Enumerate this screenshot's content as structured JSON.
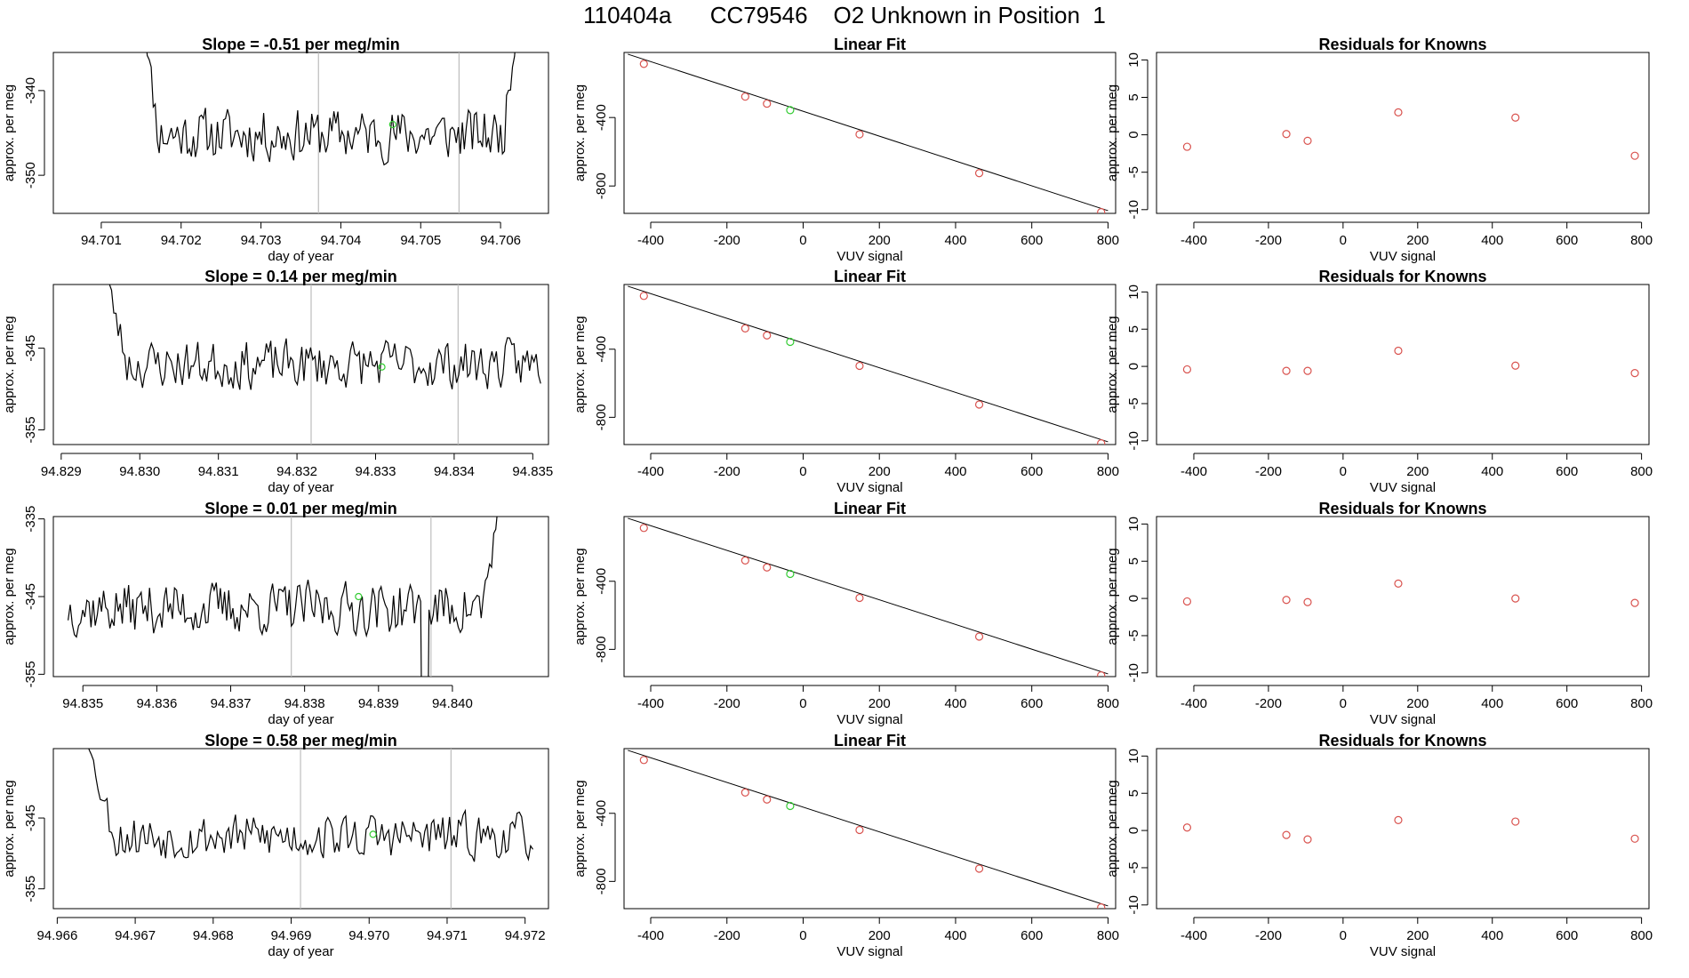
{
  "page_title": "110404a      CC79546    O2 Unknown in Position  1",
  "colors": {
    "series_line": "#000000",
    "marker_known": "#d9534f",
    "marker_unknown": "#33cc33",
    "bracket": "#bdbdbd"
  },
  "chart_data": [
    {
      "type": "line",
      "row": 0,
      "col": 0,
      "title": "Slope =  -0.51  per meg/min",
      "xlabel": "day of year",
      "ylabel": "approx. per meg",
      "xlim": [
        94.7004,
        94.7066
      ],
      "ylim": [
        -354.5,
        -335.5
      ],
      "xticks": [
        94.701,
        94.702,
        94.703,
        94.704,
        94.705,
        94.706
      ],
      "xtick_labels": [
        "94.701",
        "94.702",
        "94.703",
        "94.704",
        "94.705",
        "94.706"
      ],
      "yticks": [
        -350,
        -340
      ],
      "ytick_labels": [
        "-350",
        "-340"
      ],
      "vlines": [
        94.70372,
        94.70548
      ],
      "series": {
        "x_start": 94.7015,
        "x_end": 94.70625,
        "n": 190,
        "mean": -345.2,
        "amp": 2.4,
        "seed": 11,
        "start_level": -325,
        "end_level": -325,
        "drop_width": 0.00022,
        "dip_x": null
      },
      "highlight": {
        "x": 94.70465,
        "y": -344.0
      }
    },
    {
      "type": "scatter",
      "row": 0,
      "col": 1,
      "title": "Linear Fit",
      "xlabel": "VUV signal",
      "ylabel": "approx. per meg",
      "xlim": [
        -470,
        820
      ],
      "ylim": [
        -960,
        -20
      ],
      "xticks": [
        -400,
        -200,
        0,
        200,
        400,
        600,
        800
      ],
      "xtick_labels": [
        "-400",
        "-200",
        "0",
        "200",
        "400",
        "600",
        "800"
      ],
      "yticks": [
        -800,
        -400
      ],
      "ytick_labels": [
        "-800",
        "-400"
      ],
      "fit_line": {
        "x0": -460,
        "y0": -30,
        "x1": 800,
        "y1": -944
      },
      "points": [
        [
          -418,
          -87
        ],
        [
          -152,
          -278
        ],
        [
          -95,
          -319
        ],
        [
          148,
          -498
        ],
        [
          462,
          -725
        ],
        [
          782,
          -953
        ]
      ],
      "unknown_points": [
        [
          -34,
          -357
        ]
      ]
    },
    {
      "type": "scatter",
      "row": 0,
      "col": 2,
      "title": "Residuals for Knowns",
      "xlabel": "VUV signal",
      "ylabel": "approx. per meg",
      "xlim": [
        -500,
        820
      ],
      "ylim": [
        -10.5,
        11
      ],
      "xticks": [
        -400,
        -200,
        0,
        200,
        400,
        600,
        800
      ],
      "xtick_labels": [
        "-400",
        "-200",
        "0",
        "200",
        "400",
        "600",
        "800"
      ],
      "yticks": [
        -10,
        -5,
        0,
        5,
        10
      ],
      "ytick_labels": [
        "-10",
        "-5",
        "0",
        "5",
        "10"
      ],
      "points": [
        [
          -418,
          -1.6
        ],
        [
          -152,
          0.1
        ],
        [
          -95,
          -0.8
        ],
        [
          148,
          3.0
        ],
        [
          462,
          2.3
        ],
        [
          782,
          -2.8
        ]
      ]
    },
    {
      "type": "line",
      "row": 1,
      "col": 0,
      "title": "Slope =  0.14  per meg/min",
      "xlabel": "day of year",
      "ylabel": "approx. per meg",
      "xlim": [
        94.8289,
        94.8352
      ],
      "ylim": [
        -356.8,
        -337.2
      ],
      "xticks": [
        94.829,
        94.83,
        94.831,
        94.832,
        94.833,
        94.834,
        94.835
      ],
      "xtick_labels": [
        "94.829",
        "94.830",
        "94.831",
        "94.832",
        "94.833",
        "94.834",
        "94.835"
      ],
      "yticks": [
        -355,
        -345
      ],
      "ytick_labels": [
        "-355",
        "-345"
      ],
      "vlines": [
        94.83218,
        94.83405
      ],
      "series": {
        "x_start": 94.8295,
        "x_end": 94.8351,
        "n": 200,
        "mean": -347.0,
        "amp": 2.3,
        "seed": 23,
        "start_level": -330,
        "end_level": null,
        "drop_width": 0.00035,
        "dip_x": null
      },
      "highlight": {
        "x": 94.83308,
        "y": -347.3
      }
    },
    {
      "type": "scatter",
      "row": 1,
      "col": 1,
      "title": "Linear Fit",
      "xlabel": "VUV signal",
      "ylabel": "approx. per meg",
      "xlim": [
        -470,
        820
      ],
      "ylim": [
        -960,
        -20
      ],
      "xticks": [
        -400,
        -200,
        0,
        200,
        400,
        600,
        800
      ],
      "xtick_labels": [
        "-400",
        "-200",
        "0",
        "200",
        "400",
        "600",
        "800"
      ],
      "yticks": [
        -800,
        -400
      ],
      "ytick_labels": [
        "-800",
        "-400"
      ],
      "fit_line": {
        "x0": -460,
        "y0": -30,
        "x1": 800,
        "y1": -944
      },
      "points": [
        [
          -418,
          -87
        ],
        [
          -152,
          -278
        ],
        [
          -95,
          -319
        ],
        [
          148,
          -498
        ],
        [
          462,
          -725
        ],
        [
          782,
          -953
        ]
      ],
      "unknown_points": [
        [
          -34,
          -357
        ]
      ]
    },
    {
      "type": "scatter",
      "row": 1,
      "col": 2,
      "title": "Residuals for Knowns",
      "xlabel": "VUV signal",
      "ylabel": "approx. per meg",
      "xlim": [
        -500,
        820
      ],
      "ylim": [
        -10.5,
        11
      ],
      "xticks": [
        -400,
        -200,
        0,
        200,
        400,
        600,
        800
      ],
      "xtick_labels": [
        "-400",
        "-200",
        "0",
        "200",
        "400",
        "600",
        "800"
      ],
      "yticks": [
        -10,
        -5,
        0,
        5,
        10
      ],
      "ytick_labels": [
        "-10",
        "-5",
        "0",
        "5",
        "10"
      ],
      "points": [
        [
          -418,
          -0.4
        ],
        [
          -152,
          -0.6
        ],
        [
          -95,
          -0.6
        ],
        [
          148,
          2.1
        ],
        [
          462,
          0.1
        ],
        [
          782,
          -0.9
        ]
      ]
    },
    {
      "type": "line",
      "row": 2,
      "col": 0,
      "title": "Slope =  0.01  per meg/min",
      "xlabel": "day of year",
      "ylabel": "approx. per meg",
      "xlim": [
        94.8346,
        94.8413
      ],
      "ylim": [
        -355.3,
        -334.7
      ],
      "xticks": [
        94.835,
        94.836,
        94.837,
        94.838,
        94.839,
        94.84
      ],
      "xtick_labels": [
        "94.835",
        "94.836",
        "94.837",
        "94.838",
        "94.839",
        "94.840"
      ],
      "yticks": [
        -355,
        -345,
        -335
      ],
      "ytick_labels": [
        "-355",
        "-345",
        "-335"
      ],
      "vlines": [
        94.83782,
        94.83971
      ],
      "series": {
        "x_start": 94.8348,
        "x_end": 94.8407,
        "n": 210,
        "mean": -346.5,
        "amp": 2.6,
        "seed": 37,
        "start_level": null,
        "end_level": -325,
        "drop_width": 0.0003,
        "dip_x": 94.83962
      },
      "highlight": {
        "x": 94.83873,
        "y": -345.0
      }
    },
    {
      "type": "scatter",
      "row": 2,
      "col": 1,
      "title": "Linear Fit",
      "xlabel": "VUV signal",
      "ylabel": "approx. per meg",
      "xlim": [
        -470,
        820
      ],
      "ylim": [
        -960,
        -20
      ],
      "xticks": [
        -400,
        -200,
        0,
        200,
        400,
        600,
        800
      ],
      "xtick_labels": [
        "-400",
        "-200",
        "0",
        "200",
        "400",
        "600",
        "800"
      ],
      "yticks": [
        -800,
        -400
      ],
      "ytick_labels": [
        "-800",
        "-400"
      ],
      "fit_line": {
        "x0": -460,
        "y0": -30,
        "x1": 800,
        "y1": -944
      },
      "points": [
        [
          -418,
          -87
        ],
        [
          -152,
          -278
        ],
        [
          -95,
          -319
        ],
        [
          148,
          -498
        ],
        [
          462,
          -725
        ],
        [
          782,
          -953
        ]
      ],
      "unknown_points": [
        [
          -34,
          -357
        ]
      ]
    },
    {
      "type": "scatter",
      "row": 2,
      "col": 2,
      "title": "Residuals for Knowns",
      "xlabel": "VUV signal",
      "ylabel": "approx. per meg",
      "xlim": [
        -500,
        820
      ],
      "ylim": [
        -10.5,
        11
      ],
      "xticks": [
        -400,
        -200,
        0,
        200,
        400,
        600,
        800
      ],
      "xtick_labels": [
        "-400",
        "-200",
        "0",
        "200",
        "400",
        "600",
        "800"
      ],
      "yticks": [
        -10,
        -5,
        0,
        5,
        10
      ],
      "ytick_labels": [
        "-10",
        "-5",
        "0",
        "5",
        "10"
      ],
      "points": [
        [
          -418,
          -0.4
        ],
        [
          -152,
          -0.2
        ],
        [
          -95,
          -0.5
        ],
        [
          148,
          2.0
        ],
        [
          462,
          0.0
        ],
        [
          782,
          -0.6
        ]
      ]
    },
    {
      "type": "line",
      "row": 3,
      "col": 0,
      "title": "Slope =  0.58  per meg/min",
      "xlabel": "day of year",
      "ylabel": "approx. per meg",
      "xlim": [
        94.96595,
        94.9723
      ],
      "ylim": [
        -357.8,
        -335.2
      ],
      "xticks": [
        94.966,
        94.967,
        94.968,
        94.969,
        94.97,
        94.971,
        94.972
      ],
      "xtick_labels": [
        "94.966",
        "94.967",
        "94.968",
        "94.969",
        "94.970",
        "94.971",
        "94.972"
      ],
      "yticks": [
        -355,
        -345
      ],
      "ytick_labels": [
        "-355",
        "-345"
      ],
      "vlines": [
        94.96912,
        94.97105
      ],
      "series": {
        "x_start": 94.96635,
        "x_end": 94.9721,
        "n": 200,
        "mean": -347.6,
        "amp": 2.5,
        "seed": 53,
        "start_level": -330,
        "end_level": null,
        "drop_width": 0.0004,
        "dip_x": null
      },
      "highlight": {
        "x": 94.97005,
        "y": -347.3
      }
    },
    {
      "type": "scatter",
      "row": 3,
      "col": 1,
      "title": "Linear Fit",
      "xlabel": "VUV signal",
      "ylabel": "approx. per meg",
      "xlim": [
        -470,
        820
      ],
      "ylim": [
        -960,
        -20
      ],
      "xticks": [
        -400,
        -200,
        0,
        200,
        400,
        600,
        800
      ],
      "xtick_labels": [
        "-400",
        "-200",
        "0",
        "200",
        "400",
        "600",
        "800"
      ],
      "yticks": [
        -800,
        -400
      ],
      "ytick_labels": [
        "-800",
        "-400"
      ],
      "fit_line": {
        "x0": -460,
        "y0": -30,
        "x1": 800,
        "y1": -944
      },
      "points": [
        [
          -418,
          -87
        ],
        [
          -152,
          -278
        ],
        [
          -95,
          -319
        ],
        [
          148,
          -498
        ],
        [
          462,
          -725
        ],
        [
          782,
          -953
        ]
      ],
      "unknown_points": [
        [
          -34,
          -357
        ]
      ]
    },
    {
      "type": "scatter",
      "row": 3,
      "col": 2,
      "title": "Residuals for Knowns",
      "xlabel": "VUV signal",
      "ylabel": "approx. per meg",
      "xlim": [
        -500,
        820
      ],
      "ylim": [
        -10.5,
        11
      ],
      "xticks": [
        -400,
        -200,
        0,
        200,
        400,
        600,
        800
      ],
      "xtick_labels": [
        "-400",
        "-200",
        "0",
        "200",
        "400",
        "600",
        "800"
      ],
      "yticks": [
        -10,
        -5,
        0,
        5,
        10
      ],
      "ytick_labels": [
        "-10",
        "-5",
        "0",
        "5",
        "10"
      ],
      "points": [
        [
          -418,
          0.4
        ],
        [
          -152,
          -0.6
        ],
        [
          -95,
          -1.2
        ],
        [
          148,
          1.4
        ],
        [
          462,
          1.2
        ],
        [
          782,
          -1.1
        ]
      ]
    }
  ]
}
